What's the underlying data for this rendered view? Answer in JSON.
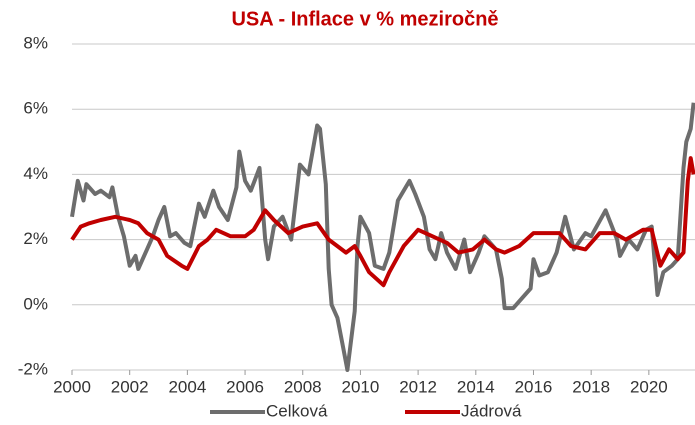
{
  "chart_data": {
    "type": "line",
    "title": "USA - Inflace v % meziročně",
    "xlim": [
      2000,
      2021.6
    ],
    "xticks": [
      2000,
      2002,
      2004,
      2006,
      2008,
      2010,
      2012,
      2014,
      2016,
      2018,
      2020
    ],
    "ylim": [
      -2,
      8
    ],
    "yticks": [
      {
        "value": -2,
        "label": "-2%"
      },
      {
        "value": 0,
        "label": "0%"
      },
      {
        "value": 2,
        "label": "2%"
      },
      {
        "value": 4,
        "label": "4%"
      },
      {
        "value": 6,
        "label": "6%"
      },
      {
        "value": 8,
        "label": "8%"
      }
    ],
    "grid": true,
    "legend": "bottom",
    "series": [
      {
        "name": "Celková",
        "color": "#6d6d6d",
        "x": [
          2000.0,
          2000.2,
          2000.4,
          2000.5,
          2000.8,
          2001.0,
          2001.3,
          2001.4,
          2001.6,
          2001.8,
          2002.0,
          2002.2,
          2002.3,
          2002.6,
          2002.8,
          2003.0,
          2003.2,
          2003.4,
          2003.6,
          2003.9,
          2004.1,
          2004.4,
          2004.6,
          2004.9,
          2005.1,
          2005.4,
          2005.7,
          2005.8,
          2006.0,
          2006.2,
          2006.5,
          2006.7,
          2006.8,
          2007.0,
          2007.3,
          2007.6,
          2007.9,
          2008.2,
          2008.5,
          2008.6,
          2008.8,
          2008.9,
          2009.0,
          2009.2,
          2009.4,
          2009.55,
          2009.8,
          2009.9,
          2010.0,
          2010.3,
          2010.5,
          2010.8,
          2011.0,
          2011.3,
          2011.7,
          2011.9,
          2012.2,
          2012.4,
          2012.6,
          2012.8,
          2013.0,
          2013.3,
          2013.6,
          2013.8,
          2014.1,
          2014.3,
          2014.7,
          2014.9,
          2015.0,
          2015.3,
          2015.6,
          2015.9,
          2016.0,
          2016.2,
          2016.5,
          2016.8,
          2017.1,
          2017.4,
          2017.8,
          2018.0,
          2018.5,
          2018.9,
          2019.0,
          2019.3,
          2019.6,
          2019.9,
          2020.1,
          2020.3,
          2020.5,
          2020.8,
          2021.0,
          2021.2,
          2021.3,
          2021.45,
          2021.55
        ],
        "values": [
          2.7,
          3.8,
          3.2,
          3.7,
          3.4,
          3.5,
          3.3,
          3.6,
          2.7,
          2.1,
          1.2,
          1.5,
          1.1,
          1.7,
          2.1,
          2.6,
          3.0,
          2.1,
          2.2,
          1.9,
          1.8,
          3.1,
          2.7,
          3.5,
          3.0,
          2.6,
          3.6,
          4.7,
          3.8,
          3.5,
          4.2,
          2.0,
          1.4,
          2.4,
          2.7,
          2.0,
          4.3,
          4.0,
          5.5,
          5.4,
          3.7,
          1.1,
          0.0,
          -0.4,
          -1.3,
          -2.0,
          -0.2,
          1.8,
          2.7,
          2.2,
          1.2,
          1.1,
          1.6,
          3.2,
          3.8,
          3.4,
          2.7,
          1.7,
          1.4,
          2.2,
          1.6,
          1.1,
          2.0,
          1.0,
          1.6,
          2.1,
          1.7,
          0.8,
          -0.1,
          -0.1,
          0.2,
          0.5,
          1.4,
          0.9,
          1.0,
          1.6,
          2.7,
          1.7,
          2.2,
          2.1,
          2.9,
          2.0,
          1.5,
          2.0,
          1.7,
          2.3,
          2.4,
          0.3,
          1.0,
          1.2,
          1.4,
          4.2,
          5.0,
          5.4,
          6.2
        ]
      },
      {
        "name": "Jádrová",
        "color": "#c00000",
        "x": [
          2000.0,
          2000.3,
          2000.6,
          2001.0,
          2001.5,
          2002.0,
          2002.3,
          2002.6,
          2003.0,
          2003.3,
          2003.8,
          2004.0,
          2004.4,
          2004.7,
          2005.0,
          2005.5,
          2006.0,
          2006.3,
          2006.7,
          2007.0,
          2007.5,
          2008.0,
          2008.5,
          2008.9,
          2009.2,
          2009.5,
          2009.8,
          2010.0,
          2010.3,
          2010.8,
          2011.0,
          2011.5,
          2012.0,
          2012.5,
          2013.0,
          2013.4,
          2013.9,
          2014.3,
          2014.7,
          2015.0,
          2015.5,
          2016.0,
          2016.5,
          2016.9,
          2017.3,
          2017.8,
          2018.3,
          2018.8,
          2019.2,
          2019.8,
          2020.1,
          2020.4,
          2020.7,
          2021.0,
          2021.2,
          2021.35,
          2021.45,
          2021.55
        ],
        "values": [
          2.0,
          2.4,
          2.5,
          2.6,
          2.7,
          2.6,
          2.5,
          2.2,
          2.0,
          1.5,
          1.2,
          1.1,
          1.8,
          2.0,
          2.3,
          2.1,
          2.1,
          2.3,
          2.9,
          2.6,
          2.2,
          2.4,
          2.5,
          2.0,
          1.8,
          1.6,
          1.8,
          1.5,
          1.0,
          0.6,
          1.0,
          1.8,
          2.3,
          2.1,
          1.9,
          1.6,
          1.7,
          2.0,
          1.7,
          1.6,
          1.8,
          2.2,
          2.2,
          2.2,
          1.8,
          1.7,
          2.2,
          2.2,
          2.0,
          2.3,
          2.3,
          1.2,
          1.7,
          1.4,
          1.6,
          3.8,
          4.5,
          4.0
        ]
      }
    ]
  }
}
